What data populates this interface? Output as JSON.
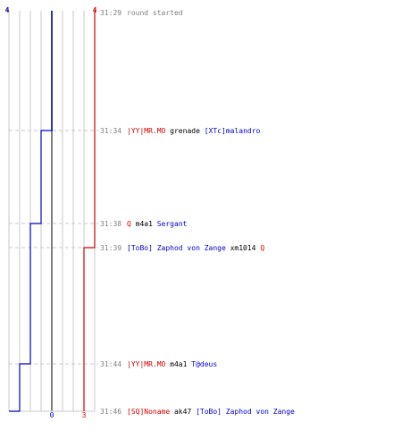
{
  "chart_data": {
    "type": "line",
    "series": [
      {
        "color": "#0000cc",
        "start": 4,
        "end": 0,
        "steps": [
          {
            "event": 1,
            "value": 3
          },
          {
            "event": 2,
            "value": 2
          },
          {
            "event": 4,
            "value": 1
          },
          {
            "event": 5,
            "value": 0
          }
        ]
      },
      {
        "color": "#cc0000",
        "start": 4,
        "end": 3,
        "steps": [
          {
            "event": 3,
            "value": 3
          }
        ]
      }
    ],
    "top_labels": [
      "4",
      "4"
    ],
    "bottom_labels": [
      "0",
      "3"
    ],
    "events": [
      {
        "time": "31:29",
        "parts": [
          {
            "text": "round started",
            "color": "#808080"
          }
        ]
      },
      {
        "time": "31:34",
        "parts": [
          {
            "text": "|YY|MR.MO",
            "color": "#cc0000"
          },
          {
            "text": " grenade ",
            "color": "#000000"
          },
          {
            "text": "[XTc]malandro",
            "color": "#0000cc"
          }
        ]
      },
      {
        "time": "31:38",
        "parts": [
          {
            "text": "Q",
            "color": "#cc0000"
          },
          {
            "text": " m4a1 ",
            "color": "#000000"
          },
          {
            "text": "Sergant",
            "color": "#0000cc"
          }
        ]
      },
      {
        "time": "31:39",
        "parts": [
          {
            "text": "[ToBo] Zaphod von Zange",
            "color": "#0000cc"
          },
          {
            "text": " xm1014 ",
            "color": "#000000"
          },
          {
            "text": "Q",
            "color": "#cc0000"
          }
        ]
      },
      {
        "time": "31:44",
        "parts": [
          {
            "text": "|YY|MR.MO",
            "color": "#cc0000"
          },
          {
            "text": " m4a1 ",
            "color": "#000000"
          },
          {
            "text": "T@deus",
            "color": "#0000cc"
          }
        ]
      },
      {
        "time": "31:46",
        "parts": [
          {
            "text": "[SQ]Noname",
            "color": "#cc0000"
          },
          {
            "text": " ak47 ",
            "color": "#000000"
          },
          {
            "text": "[ToBo] Zaphod von Zange",
            "color": "#0000cc"
          }
        ]
      }
    ]
  }
}
